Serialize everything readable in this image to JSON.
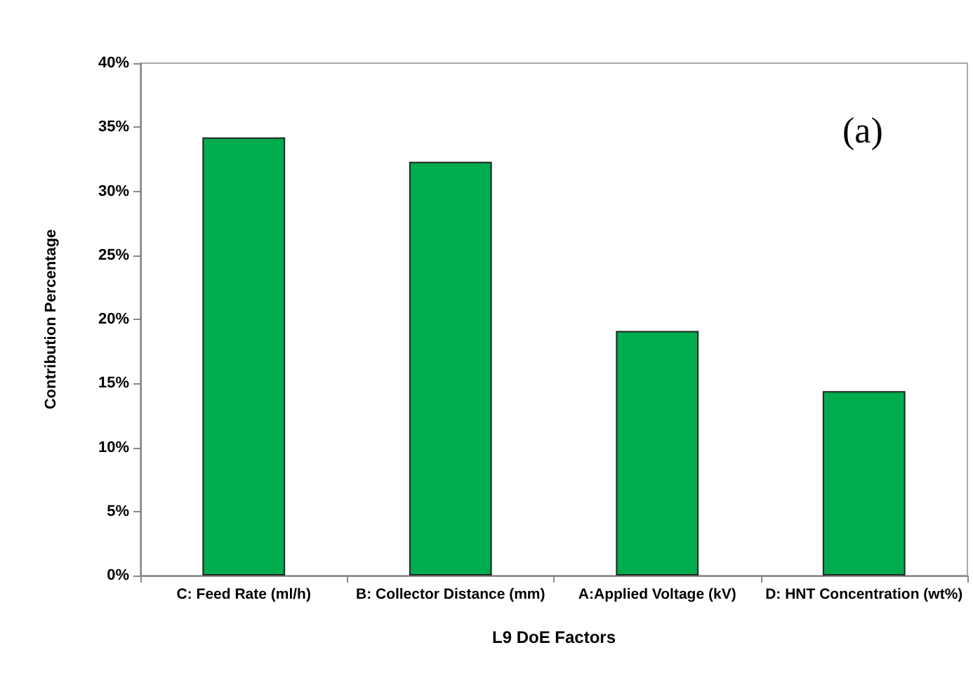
{
  "chart_data": {
    "type": "bar",
    "xlabel": "L9 DoE Factors",
    "ylabel": "Contribution Percentage",
    "categories": [
      "C: Feed Rate (ml/h)",
      "B: Collector Distance (mm)",
      "A:Applied Voltage (kV)",
      "D: HNT Concentration (wt%)"
    ],
    "values": [
      34.2,
      32.3,
      19.1,
      14.4
    ],
    "color": "#00ac4e",
    "ylim": [
      0,
      40
    ],
    "yticks": [
      {
        "value": 0,
        "label": "0%"
      },
      {
        "value": 5,
        "label": "5%"
      },
      {
        "value": 10,
        "label": "10%"
      },
      {
        "value": 15,
        "label": "15%"
      },
      {
        "value": 20,
        "label": "20%"
      },
      {
        "value": 25,
        "label": "25%"
      },
      {
        "value": 30,
        "label": "30%"
      },
      {
        "value": 35,
        "label": "35%"
      },
      {
        "value": 40,
        "label": "40%"
      }
    ],
    "annotations": [
      "(a)"
    ],
    "grid": false
  }
}
